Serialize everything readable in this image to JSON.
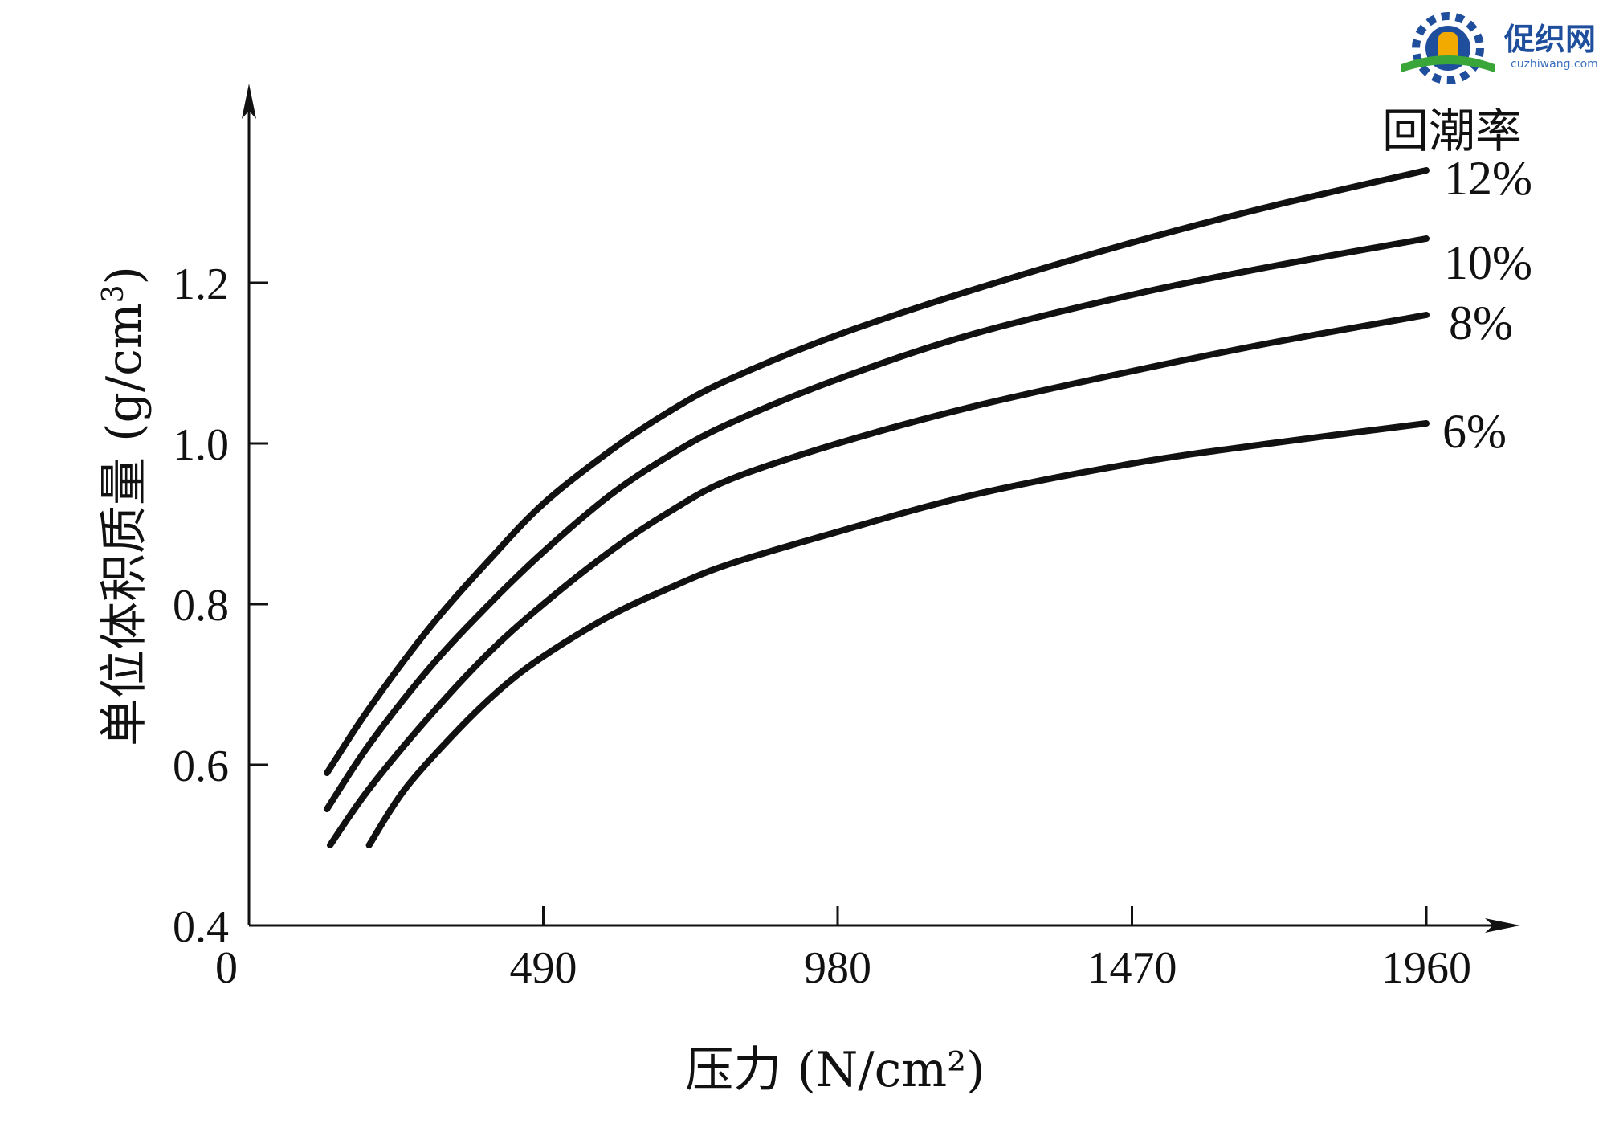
{
  "watermark": {
    "brand": "促织网",
    "domain": "cuzhiwang.com",
    "colors": {
      "primary": "#1f4e9c",
      "accent": "#f2a900",
      "green": "#3aa63a"
    }
  },
  "chart_data": {
    "type": "line",
    "title": "",
    "xlabel": "压力 (N/cm²)",
    "ylabel_main": "单位体积质量 (g/cm",
    "ylabel_sup": "3",
    "ylabel_close": ")",
    "xlim": [
      0,
      2160
    ],
    "ylim": [
      0.4,
      1.45
    ],
    "x_ticks": [
      490,
      980,
      1470,
      1960
    ],
    "x_tick_labels": [
      "490",
      "980",
      "1470",
      "1960"
    ],
    "y_ticks": [
      0.4,
      0.6,
      0.8,
      1.0,
      1.2
    ],
    "y_tick_labels": [
      "0.4",
      "0.6",
      "0.8",
      "1.0",
      "1.2"
    ],
    "origin_label": "0",
    "legend_title": "回潮率",
    "grid": false,
    "series": [
      {
        "name": "12%",
        "x": [
          130,
          200,
          300,
          400,
          490,
          600,
          700,
          800,
          980,
          1200,
          1470,
          1700,
          1960
        ],
        "y": [
          0.59,
          0.67,
          0.77,
          0.855,
          0.925,
          0.99,
          1.04,
          1.08,
          1.135,
          1.19,
          1.25,
          1.295,
          1.34
        ]
      },
      {
        "name": "10%",
        "x": [
          130,
          200,
          300,
          400,
          490,
          600,
          700,
          800,
          980,
          1200,
          1470,
          1700,
          1960
        ],
        "y": [
          0.545,
          0.625,
          0.72,
          0.8,
          0.865,
          0.935,
          0.985,
          1.025,
          1.08,
          1.135,
          1.185,
          1.22,
          1.255
        ]
      },
      {
        "name": "8%",
        "x": [
          135,
          200,
          300,
          400,
          490,
          600,
          700,
          800,
          980,
          1200,
          1470,
          1700,
          1960
        ],
        "y": [
          0.5,
          0.57,
          0.66,
          0.74,
          0.8,
          0.865,
          0.915,
          0.955,
          1.0,
          1.045,
          1.09,
          1.125,
          1.16
        ]
      },
      {
        "name": "6%",
        "x": [
          200,
          260,
          350,
          420,
          490,
          600,
          700,
          800,
          980,
          1200,
          1470,
          1700,
          1960
        ],
        "y": [
          0.5,
          0.57,
          0.645,
          0.695,
          0.735,
          0.785,
          0.82,
          0.85,
          0.89,
          0.935,
          0.975,
          1.0,
          1.025
        ]
      }
    ]
  }
}
